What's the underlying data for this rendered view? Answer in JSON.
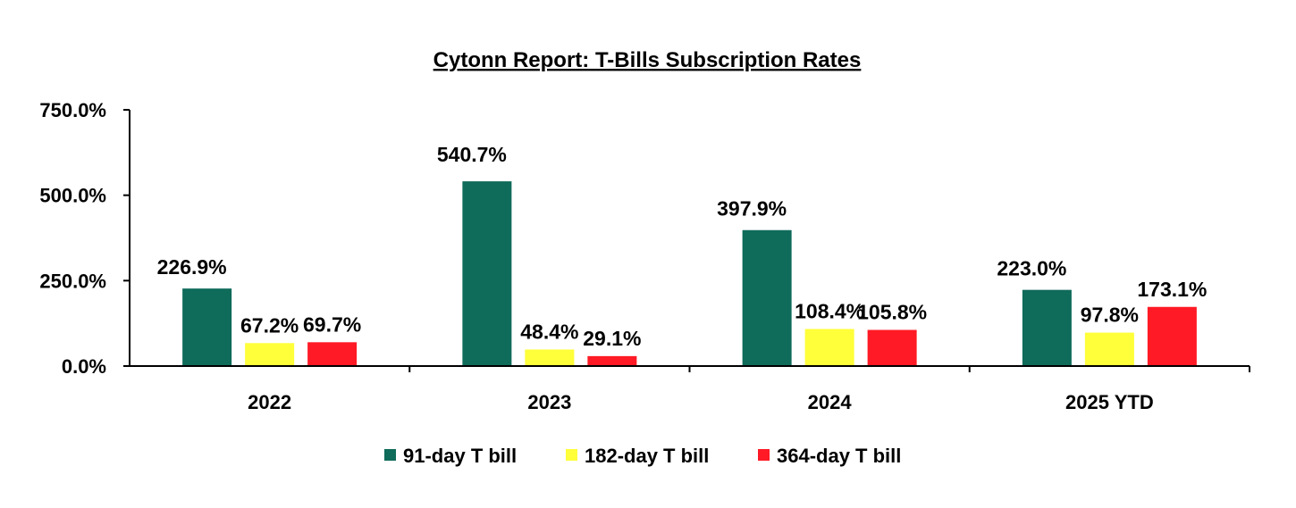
{
  "chart_data": {
    "type": "bar",
    "title": "Cytonn Report: T-Bills Subscription Rates",
    "xlabel": "",
    "ylabel": "",
    "ylim": [
      0,
      750
    ],
    "yticks": [
      0,
      250,
      500,
      750
    ],
    "ytick_labels": [
      "0.0%",
      "250.0%",
      "500.0%",
      "750.0%"
    ],
    "categories": [
      "2022",
      "2023",
      "2024",
      "2025 YTD"
    ],
    "series": [
      {
        "name": "91-day T bill",
        "color": "#0f6b5a",
        "values": [
          226.9,
          540.7,
          397.9,
          223.0
        ],
        "labels": [
          "226.9%",
          "540.7%",
          "397.9%",
          "223.0%"
        ]
      },
      {
        "name": "182-day T bill",
        "color": "#ffff3a",
        "values": [
          67.2,
          48.4,
          108.4,
          97.8
        ],
        "labels": [
          "67.2%",
          "48.4%",
          "108.4%",
          "97.8%"
        ]
      },
      {
        "name": "364-day T bill",
        "color": "#ff1a25",
        "values": [
          69.7,
          29.1,
          105.8,
          173.1
        ],
        "labels": [
          "69.7%",
          "29.1%",
          "105.8%",
          "173.1%"
        ]
      }
    ],
    "grid": false,
    "legend_position": "bottom"
  }
}
